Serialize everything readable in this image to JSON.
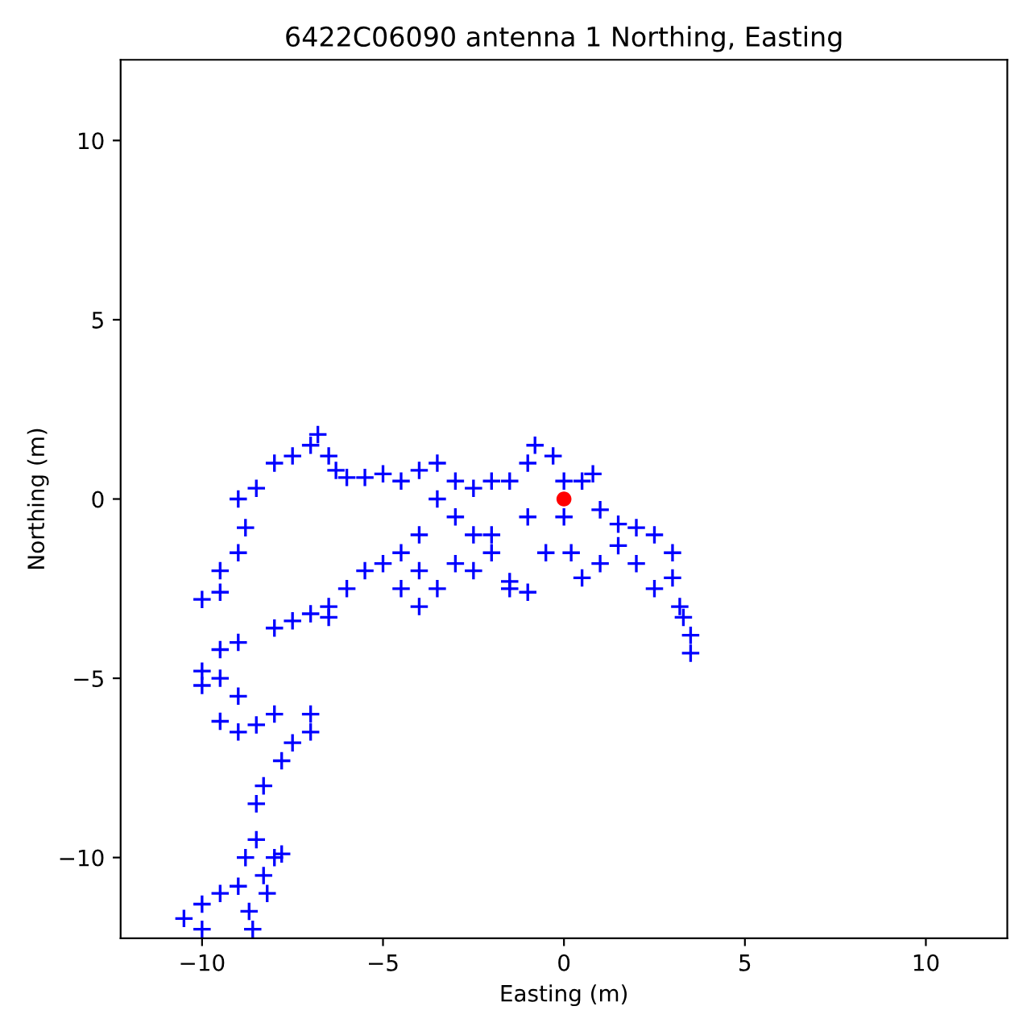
{
  "chart_data": {
    "type": "scatter",
    "title": "6422C06090 antenna 1 Northing, Easting",
    "xlabel": "Easting (m)",
    "ylabel": "Northing (m)",
    "xlim": [
      -12.25,
      12.25
    ],
    "ylim": [
      -12.25,
      12.25
    ],
    "xticks": [
      {
        "value": -10,
        "label": "−10"
      },
      {
        "value": -5,
        "label": "−5"
      },
      0,
      5,
      10
    ],
    "yticks": [
      {
        "value": -10,
        "label": "−10"
      },
      {
        "value": -5,
        "label": "−5"
      },
      0,
      5,
      10
    ],
    "grid": false,
    "legend": false,
    "series": [
      {
        "color": "#0000ff",
        "marker": "cross",
        "x": [
          -10.5,
          -10,
          -10,
          -9.5,
          -9,
          -8.8,
          -8.5,
          -8.3,
          -8,
          -7.8,
          -8.7,
          -8.6,
          -8.2,
          -8.5,
          -8.3,
          -7.8,
          -7.5,
          -7,
          -7,
          -8,
          -8.5,
          -9,
          -9.5,
          -9,
          -9.5,
          -10,
          -10,
          -9.5,
          -9,
          -8,
          -7.5,
          -7,
          -6.5,
          -6,
          -5.5,
          -5,
          -4.5,
          -4,
          -4,
          -3.5,
          -3,
          -2.5,
          -2,
          -1.5,
          -1,
          -0.5,
          0.2,
          0.5,
          1,
          1.5,
          2,
          2.5,
          3,
          3.2,
          3.5,
          3.5,
          3.3,
          3,
          2.5,
          2,
          1.5,
          1,
          0.8,
          0.5,
          0,
          -0.3,
          -0.8,
          -1,
          -1.5,
          -2,
          -2.5,
          -3,
          -3.5,
          -4,
          -4.5,
          -5,
          -5.5,
          -6,
          -6.3,
          -6.5,
          -6.8,
          -7,
          -7.5,
          -8,
          -8.5,
          -9,
          -8.8,
          -9,
          -9.5,
          -9.5,
          -10,
          -4,
          -3,
          -2,
          -1,
          -1.5,
          0,
          -4.5,
          -3.5,
          -2.5,
          -6.5
        ],
        "values": [
          -11.7,
          -12,
          -11.3,
          -11,
          -10.8,
          -10,
          -9.5,
          -10.5,
          -10,
          -9.9,
          -11.5,
          -12,
          -11,
          -8.5,
          -8,
          -7.3,
          -6.8,
          -6.5,
          -6,
          -6,
          -6.3,
          -6.5,
          -6.2,
          -5.5,
          -5,
          -5.2,
          -4.8,
          -4.2,
          -4,
          -3.6,
          -3.4,
          -3.2,
          -3,
          -2.5,
          -2,
          -1.8,
          -2.5,
          -3,
          -2,
          -2.5,
          -1.8,
          -2,
          -1.5,
          -2.3,
          -2.6,
          -1.5,
          -1.5,
          -2.2,
          -1.8,
          -1.3,
          -1.8,
          -2.5,
          -2.2,
          -3,
          -3.8,
          -4.3,
          -3.3,
          -1.5,
          -1,
          -0.8,
          -0.7,
          -0.3,
          0.7,
          0.5,
          0.5,
          1.2,
          1.5,
          1,
          0.5,
          0.5,
          0.3,
          0.5,
          1,
          0.8,
          0.5,
          0.7,
          0.6,
          0.6,
          0.8,
          1.2,
          1.8,
          1.5,
          1.2,
          1,
          0.3,
          0,
          -0.8,
          -1.5,
          -2,
          -2.6,
          -2.8,
          -1,
          -0.5,
          -1,
          -0.5,
          -2.5,
          -0.5,
          -1.5,
          0,
          -1,
          -3.3
        ]
      },
      {
        "color": "#ff0000",
        "marker": "circle",
        "x": [
          0
        ],
        "values": [
          0
        ]
      }
    ]
  }
}
